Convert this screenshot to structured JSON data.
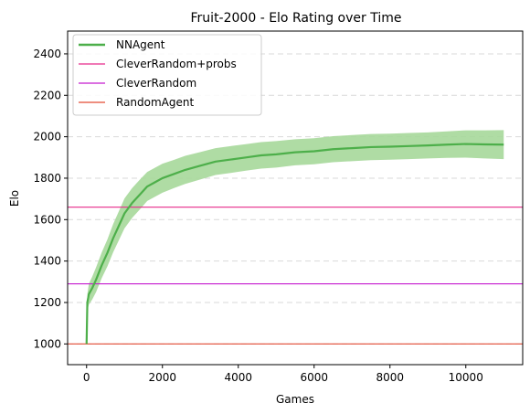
{
  "chart_data": {
    "type": "line",
    "title": "Fruit-2000 - Elo Rating over Time",
    "xlabel": "Games",
    "ylabel": "Elo",
    "xlim": [
      -500,
      11500
    ],
    "ylim": [
      900,
      2510
    ],
    "xticks": [
      0,
      2000,
      4000,
      6000,
      8000,
      10000
    ],
    "yticks": [
      1000,
      1200,
      1400,
      1600,
      1800,
      2000,
      2200,
      2400
    ],
    "grid": "horizontal-dashed",
    "legend_position": "top-left",
    "series": [
      {
        "name": "NNAgent",
        "kind": "line-with-band",
        "color": "#4daf4a",
        "band_color": "#a6d89a",
        "points": [
          [
            0,
            1000
          ],
          [
            20,
            1200
          ],
          [
            60,
            1240
          ],
          [
            150,
            1270
          ],
          [
            250,
            1310
          ],
          [
            400,
            1380
          ],
          [
            550,
            1440
          ],
          [
            700,
            1510
          ],
          [
            850,
            1570
          ],
          [
            1000,
            1630
          ],
          [
            1200,
            1680
          ],
          [
            1400,
            1720
          ],
          [
            1600,
            1760
          ],
          [
            1800,
            1780
          ],
          [
            2000,
            1800
          ],
          [
            2300,
            1820
          ],
          [
            2600,
            1840
          ],
          [
            3000,
            1860
          ],
          [
            3400,
            1880
          ],
          [
            3800,
            1890
          ],
          [
            4200,
            1900
          ],
          [
            4600,
            1910
          ],
          [
            5000,
            1915
          ],
          [
            5500,
            1925
          ],
          [
            6000,
            1930
          ],
          [
            6500,
            1940
          ],
          [
            7000,
            1945
          ],
          [
            7500,
            1950
          ],
          [
            8000,
            1952
          ],
          [
            8500,
            1955
          ],
          [
            9000,
            1958
          ],
          [
            9500,
            1962
          ],
          [
            10000,
            1965
          ],
          [
            10500,
            1963
          ],
          [
            11000,
            1962
          ]
        ],
        "band_halfwidth": [
          0,
          40,
          50,
          55,
          60,
          62,
          65,
          68,
          70,
          72,
          72,
          72,
          70,
          70,
          70,
          68,
          68,
          66,
          65,
          65,
          64,
          64,
          64,
          63,
          63,
          63,
          63,
          63,
          63,
          63,
          63,
          64,
          66,
          68,
          70
        ]
      },
      {
        "name": "CleverRandom+probs",
        "kind": "hline",
        "color": "#e7298a",
        "value": 1660
      },
      {
        "name": "CleverRandom",
        "kind": "hline",
        "color": "#c51bcf",
        "value": 1290
      },
      {
        "name": "RandomAgent",
        "kind": "hline",
        "color": "#e34a33",
        "value": 1000
      }
    ]
  }
}
